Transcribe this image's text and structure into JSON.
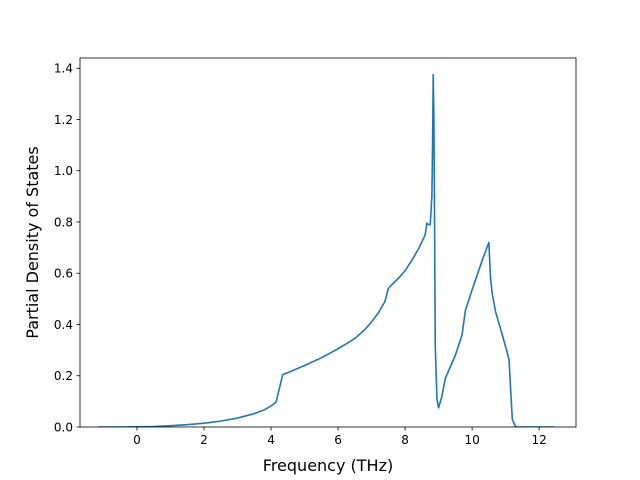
{
  "chart_data": {
    "type": "line",
    "title": "",
    "xlabel": "Frequency (THz)",
    "ylabel": "Partial Density of States",
    "xlim": [
      -1.7,
      13.1
    ],
    "ylim": [
      0.0,
      1.44
    ],
    "xticks": [
      0,
      2,
      4,
      6,
      8,
      10,
      12
    ],
    "yticks": [
      0.0,
      0.2,
      0.4,
      0.6,
      0.8,
      1.0,
      1.2,
      1.4
    ],
    "xtick_labels": [
      "0",
      "2",
      "4",
      "6",
      "8",
      "10",
      "12"
    ],
    "ytick_labels": [
      "0.0",
      "0.2",
      "0.4",
      "0.6",
      "0.8",
      "1.0",
      "1.2",
      "1.4"
    ],
    "grid": false,
    "legend": "none",
    "colors": {
      "line": "#1f77b4",
      "axes": "#000000",
      "background": "#ffffff"
    },
    "series": [
      {
        "x": [
          -1.15,
          -0.5,
          0.0,
          0.5,
          1.0,
          1.5,
          2.0,
          2.5,
          3.0,
          3.5,
          3.8,
          4.0,
          4.15,
          4.35,
          4.5,
          5.0,
          5.5,
          6.0,
          6.5,
          6.8,
          7.0,
          7.2,
          7.4,
          7.5,
          7.6,
          7.8,
          8.0,
          8.2,
          8.4,
          8.6,
          8.65,
          8.7,
          8.75,
          8.8,
          8.82,
          8.84,
          8.86,
          8.88,
          8.9,
          8.95,
          9.0,
          9.1,
          9.2,
          9.5,
          9.7,
          9.8,
          10.0,
          10.3,
          10.5,
          10.55,
          10.6,
          10.7,
          10.9,
          11.1,
          11.2,
          11.3,
          11.5,
          12.0,
          12.45
        ],
        "y": [
          0.0,
          0.0,
          0.001,
          0.002,
          0.005,
          0.009,
          0.015,
          0.023,
          0.035,
          0.052,
          0.067,
          0.082,
          0.097,
          0.205,
          0.212,
          0.24,
          0.27,
          0.305,
          0.345,
          0.38,
          0.41,
          0.445,
          0.49,
          0.54,
          0.555,
          0.58,
          0.61,
          0.65,
          0.695,
          0.75,
          0.795,
          0.79,
          0.79,
          0.9,
          1.1,
          1.375,
          1.2,
          0.8,
          0.32,
          0.11,
          0.075,
          0.12,
          0.19,
          0.28,
          0.36,
          0.455,
          0.535,
          0.65,
          0.72,
          0.58,
          0.52,
          0.45,
          0.36,
          0.265,
          0.03,
          0.0,
          0.0,
          0.0,
          0.0
        ]
      }
    ]
  }
}
